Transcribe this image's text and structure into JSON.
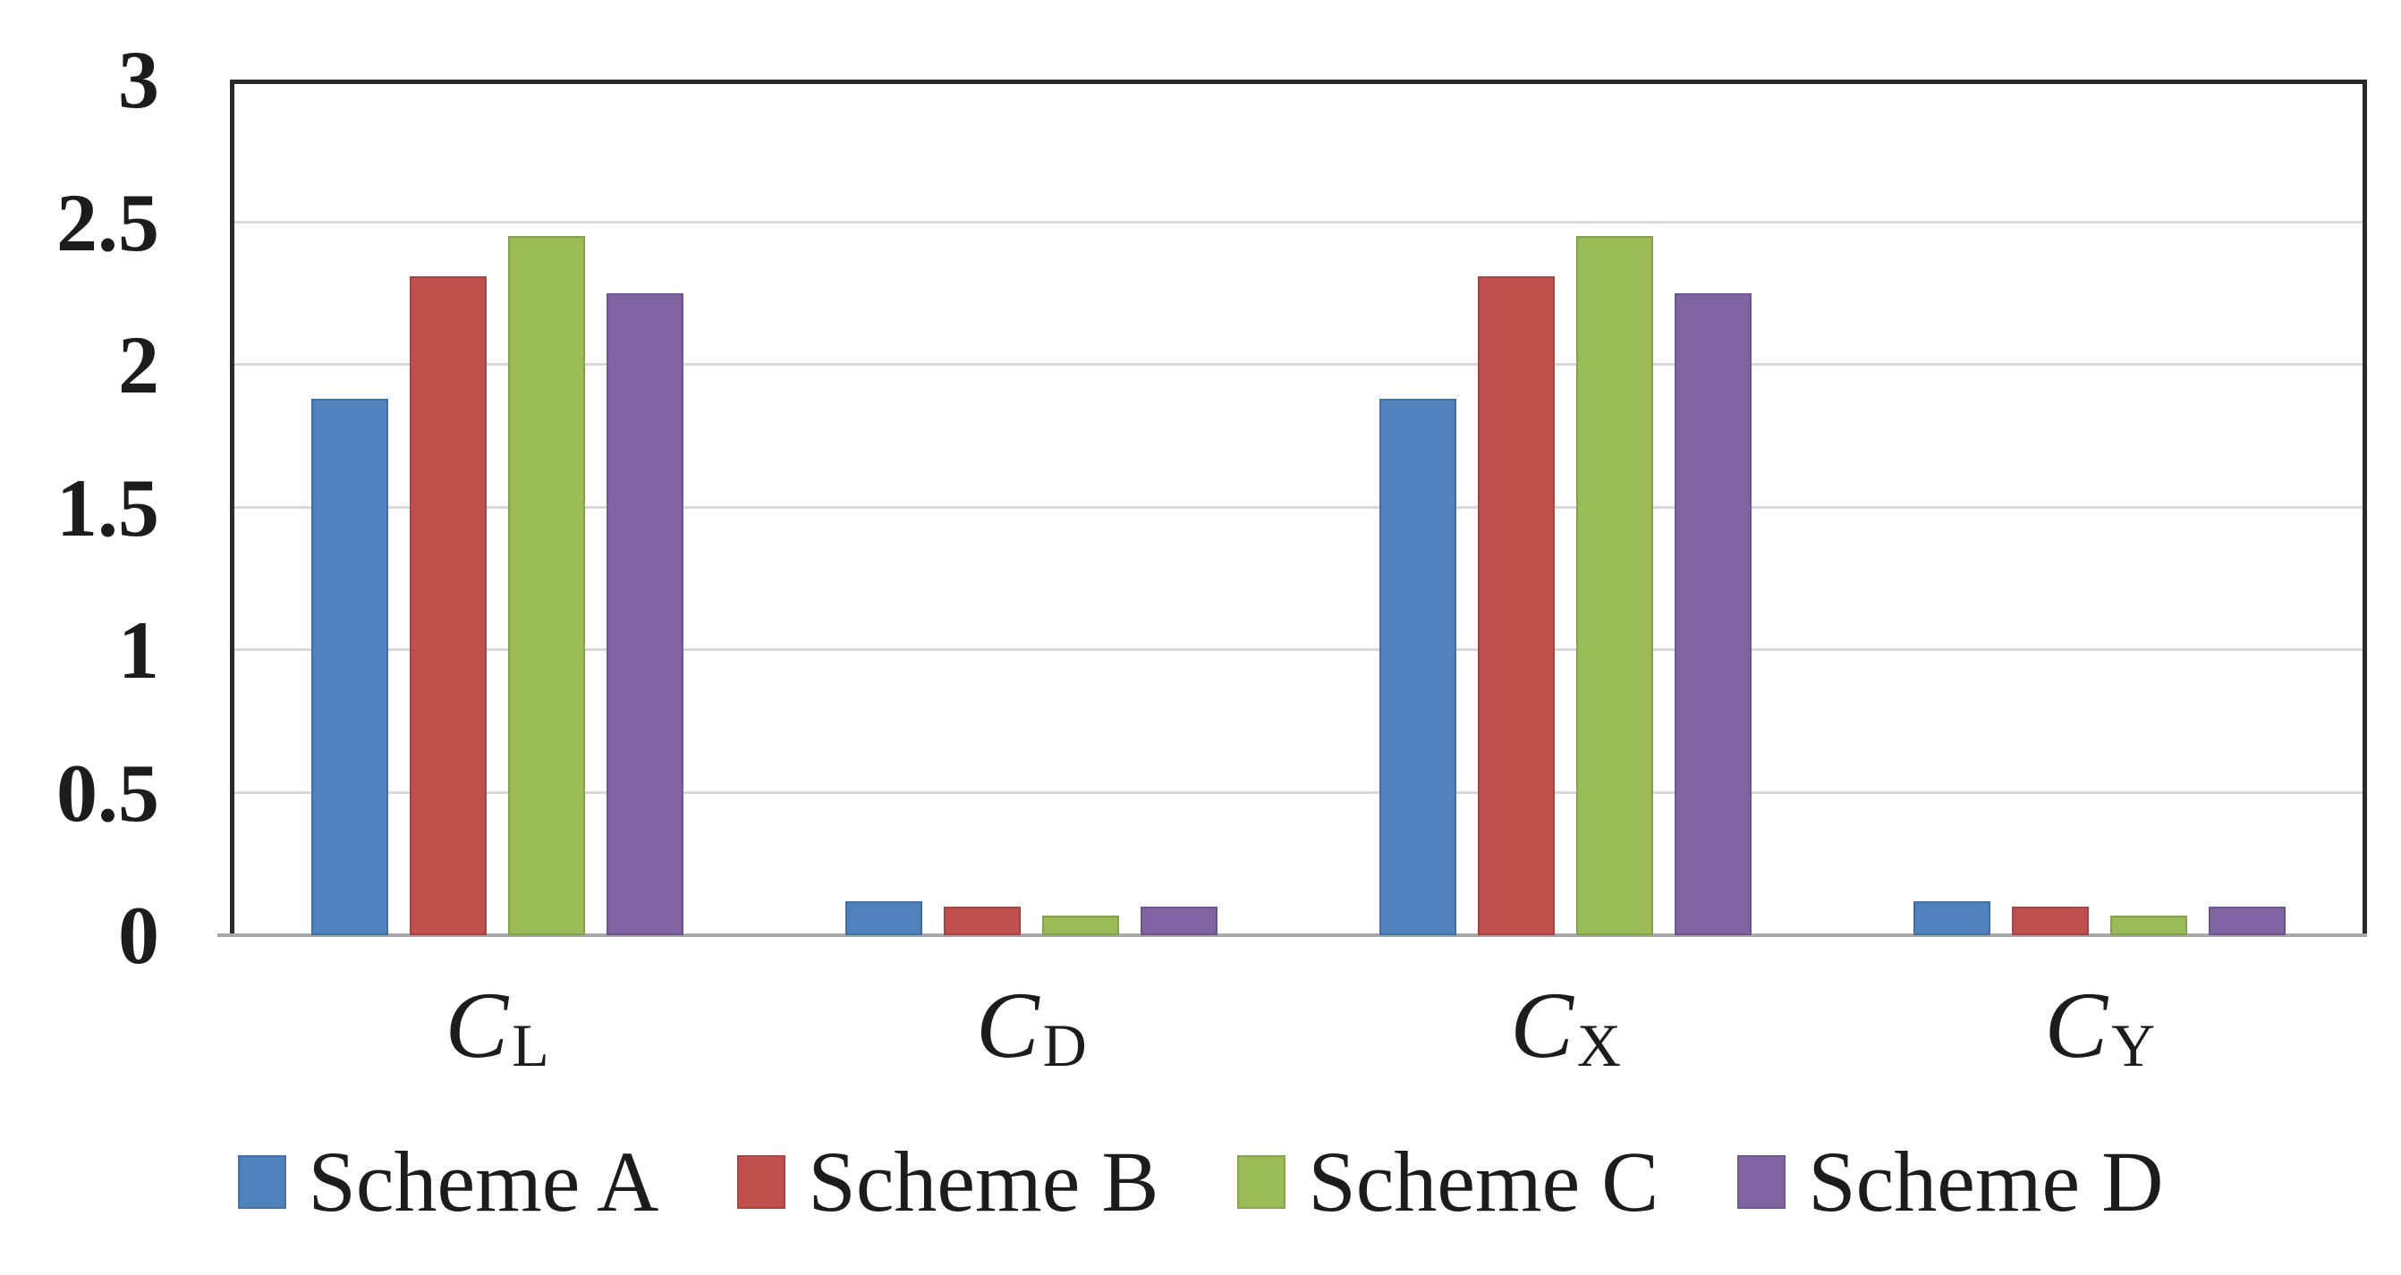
{
  "chart_data": {
    "type": "bar",
    "title": "",
    "xlabel": "",
    "ylabel": "",
    "categories": [
      {
        "base": "C",
        "sub": "L"
      },
      {
        "base": "C",
        "sub": "D"
      },
      {
        "base": "C",
        "sub": "X"
      },
      {
        "base": "C",
        "sub": "Y"
      }
    ],
    "series": [
      {
        "name": "Scheme A",
        "color": "#4F81BD",
        "values": [
          1.88,
          0.12,
          1.88,
          0.12
        ]
      },
      {
        "name": "Scheme B",
        "color": "#C0504D",
        "values": [
          2.31,
          0.1,
          2.31,
          0.1
        ]
      },
      {
        "name": "Scheme C",
        "color": "#9BBB59",
        "values": [
          2.45,
          0.07,
          2.45,
          0.07
        ]
      },
      {
        "name": "Scheme D",
        "color": "#8064A2",
        "values": [
          2.25,
          0.1,
          2.25,
          0.1
        ]
      }
    ],
    "ylim": [
      0,
      3
    ],
    "ytick_step": 0.5,
    "ytick_labels": [
      "0",
      "0.5",
      "1",
      "1.5",
      "2",
      "2.5",
      "3"
    ],
    "grid": true,
    "legend_position": "bottom",
    "colors": {
      "gridline": "#D9D9D9",
      "plot_border": "#2A2A2A",
      "x_axis_line": "#A8A8A8",
      "text": "#1C1C1C",
      "background": "#FFFFFF"
    }
  }
}
